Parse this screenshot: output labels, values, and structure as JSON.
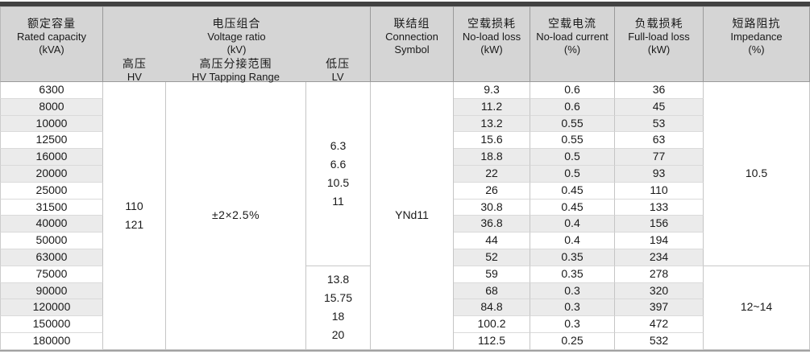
{
  "colors": {
    "top_bar": "#424242",
    "header_bg": "#d5d5d5",
    "header_border": "#9a9a9a",
    "body_border_vertical": "#c5c5c5",
    "body_border_horizontal": "#dadada",
    "row_stripe": "#ebebeb",
    "text": "#1a1a1a",
    "bottom_border": "#a2a2a2"
  },
  "table": {
    "header": {
      "rated_capacity": {
        "zh": "额定容量",
        "en": "Rated capacity",
        "unit": "(kVA)"
      },
      "voltage_ratio": {
        "zh": "电压组合",
        "en": "Voltage ratio",
        "unit": "(kV)",
        "hv": {
          "zh": "高压",
          "en": "HV"
        },
        "tapping": {
          "zh": "高压分接范围",
          "en": "HV Tapping Range"
        },
        "lv": {
          "zh": "低压",
          "en": "LV"
        }
      },
      "connection": {
        "zh": "联结组",
        "en_line1": "Connection",
        "en_line2": "Symbol"
      },
      "no_load_loss": {
        "zh": "空载损耗",
        "en": "No-load loss",
        "unit": "(kW)"
      },
      "no_load_current": {
        "zh": "空载电流",
        "en": "No-load current",
        "unit": "(%)"
      },
      "full_load_loss": {
        "zh": "负载损耗",
        "en": "Full-load loss",
        "unit": "(kW)"
      },
      "impedance": {
        "zh": "短路阻抗",
        "en": "Impedance",
        "unit": "(%)"
      }
    },
    "merged": {
      "hv_values": [
        "110",
        "121"
      ],
      "tapping_range": "±2×2.5%",
      "lv_upper": [
        "6.3",
        "6.6",
        "10.5",
        "11"
      ],
      "lv_lower": [
        "13.8",
        "15.75",
        "18",
        "20"
      ],
      "connection_symbol": "YNd11",
      "impedance_upper": "10.5",
      "impedance_lower": "12~14"
    },
    "upper_rowspan": 11,
    "lower_rowspan": 5,
    "rows": [
      {
        "capacity": "6300",
        "no_load_loss": "9.3",
        "no_load_current": "0.6",
        "full_load_loss": "36",
        "shaded": false
      },
      {
        "capacity": "8000",
        "no_load_loss": "11.2",
        "no_load_current": "0.6",
        "full_load_loss": "45",
        "shaded": true
      },
      {
        "capacity": "10000",
        "no_load_loss": "13.2",
        "no_load_current": "0.55",
        "full_load_loss": "53",
        "shaded": true
      },
      {
        "capacity": "12500",
        "no_load_loss": "15.6",
        "no_load_current": "0.55",
        "full_load_loss": "63",
        "shaded": false
      },
      {
        "capacity": "16000",
        "no_load_loss": "18.8",
        "no_load_current": "0.5",
        "full_load_loss": "77",
        "shaded": true
      },
      {
        "capacity": "20000",
        "no_load_loss": "22",
        "no_load_current": "0.5",
        "full_load_loss": "93",
        "shaded": true
      },
      {
        "capacity": "25000",
        "no_load_loss": "26",
        "no_load_current": "0.45",
        "full_load_loss": "110",
        "shaded": false
      },
      {
        "capacity": "31500",
        "no_load_loss": "30.8",
        "no_load_current": "0.45",
        "full_load_loss": "133",
        "shaded": false
      },
      {
        "capacity": "40000",
        "no_load_loss": "36.8",
        "no_load_current": "0.4",
        "full_load_loss": "156",
        "shaded": true
      },
      {
        "capacity": "50000",
        "no_load_loss": "44",
        "no_load_current": "0.4",
        "full_load_loss": "194",
        "shaded": false
      },
      {
        "capacity": "63000",
        "no_load_loss": "52",
        "no_load_current": "0.35",
        "full_load_loss": "234",
        "shaded": true
      },
      {
        "capacity": "75000",
        "no_load_loss": "59",
        "no_load_current": "0.35",
        "full_load_loss": "278",
        "shaded": false
      },
      {
        "capacity": "90000",
        "no_load_loss": "68",
        "no_load_current": "0.3",
        "full_load_loss": "320",
        "shaded": true
      },
      {
        "capacity": "120000",
        "no_load_loss": "84.8",
        "no_load_current": "0.3",
        "full_load_loss": "397",
        "shaded": true
      },
      {
        "capacity": "150000",
        "no_load_loss": "100.2",
        "no_load_current": "0.3",
        "full_load_loss": "472",
        "shaded": false
      },
      {
        "capacity": "180000",
        "no_load_loss": "112.5",
        "no_load_current": "0.25",
        "full_load_loss": "532",
        "shaded": false
      }
    ]
  }
}
